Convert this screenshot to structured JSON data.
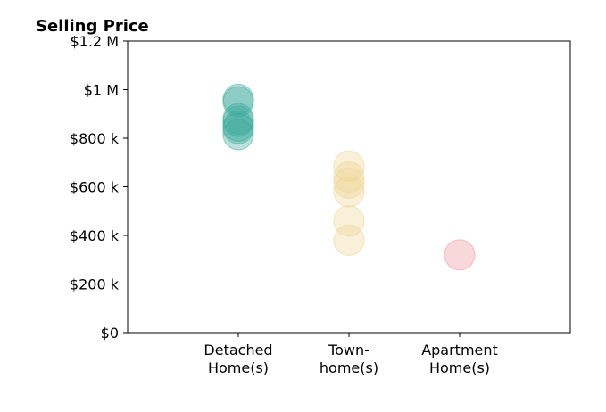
{
  "chart_data": {
    "type": "scatter",
    "title": "Selling Price",
    "xlabel": "",
    "ylabel": "",
    "categories": [
      [
        "Detached",
        "Home(s)"
      ],
      [
        "Town-",
        "home(s)"
      ],
      [
        "Apartment",
        "Home(s)"
      ]
    ],
    "y_ticks": [
      {
        "value": 0,
        "label": "$0"
      },
      {
        "value": 200000,
        "label": "$200 k"
      },
      {
        "value": 400000,
        "label": "$400 k"
      },
      {
        "value": 600000,
        "label": "$600 k"
      },
      {
        "value": 800000,
        "label": "$800 k"
      },
      {
        "value": 1000000,
        "label": "$1 M"
      },
      {
        "value": 1200000,
        "label": "$1.2 M"
      }
    ],
    "ylim": [
      0,
      1200000
    ],
    "xlim": [
      -1,
      3
    ],
    "grid": false,
    "series": [
      {
        "category_index": 0,
        "color": "#3aa89a",
        "values": [
          960000,
          950000,
          880000,
          870000,
          850000,
          840000,
          815000
        ]
      },
      {
        "category_index": 1,
        "color": "#edd391",
        "values": [
          685000,
          640000,
          615000,
          580000,
          460000,
          380000
        ]
      },
      {
        "category_index": 2,
        "color": "#ee8f9b",
        "values": [
          320000
        ]
      }
    ]
  }
}
